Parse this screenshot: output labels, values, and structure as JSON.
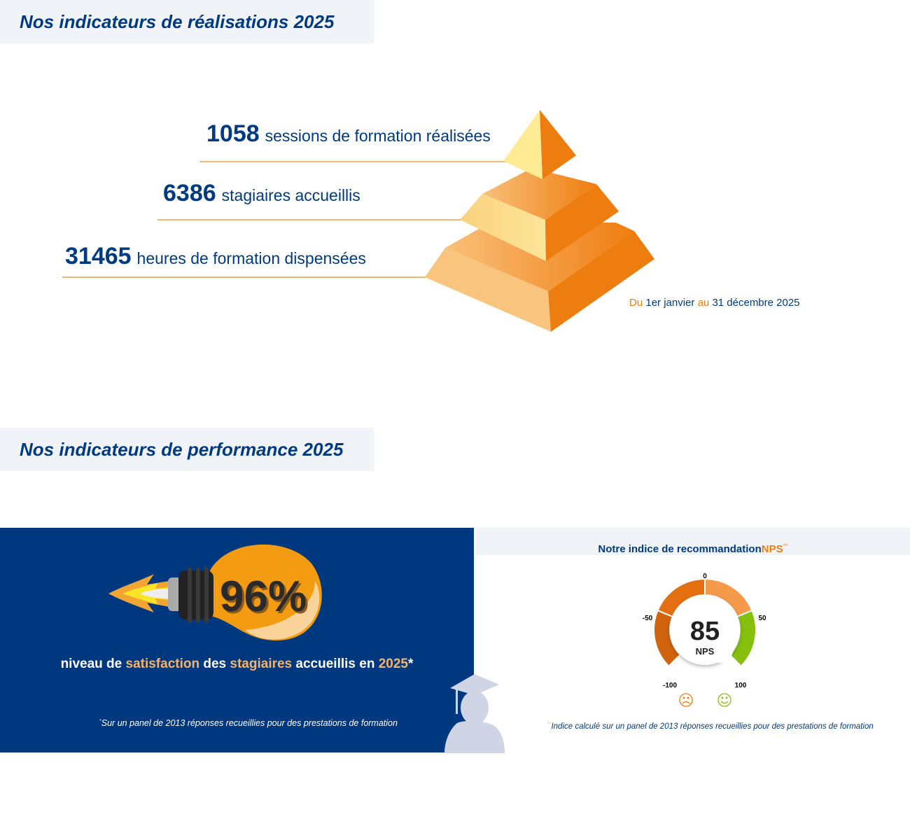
{
  "section1": {
    "title": "Nos indicateurs de réalisations 2025"
  },
  "stats": [
    {
      "value": "1058",
      "label": "sessions de formation réalisées"
    },
    {
      "value": "6386",
      "label": "stagiaires accueillis"
    },
    {
      "value": "31465",
      "label": "heures de formation dispensées"
    }
  ],
  "period": {
    "du": "Du",
    "start": "1er janvier",
    "au": "au",
    "end": "31 décembre 2025"
  },
  "section2": {
    "title": "Nos indicateurs de performance 2025"
  },
  "satisfaction": {
    "value": "96%",
    "text": [
      "niveau de ",
      "satisfaction",
      " des ",
      "stagiaires",
      " accueillis en ",
      "2025",
      "*"
    ],
    "note_mark": "*",
    "note": "Sur un panel de 2013 réponses recueillies pour des prestations de formation"
  },
  "nps": {
    "title": "Notre indice de recommandation ",
    "title_accent": "NPS",
    "title_mark": "**",
    "value": "85",
    "unit": "NPS",
    "ticks": [
      "-100",
      "-50",
      "0",
      "50",
      "100"
    ],
    "range": [
      -100,
      100
    ],
    "note_mark": "**",
    "note": "Indice calculé sur un panel de 2013 réponses recueillies pour des prestations de formation",
    "icons": [
      "sad-face-icon",
      "happy-face-icon"
    ]
  },
  "colors": {
    "navy": "#003a80",
    "orange": "#ee7d10",
    "light_orange": "#f6b26b",
    "green": "#86bf0c"
  }
}
